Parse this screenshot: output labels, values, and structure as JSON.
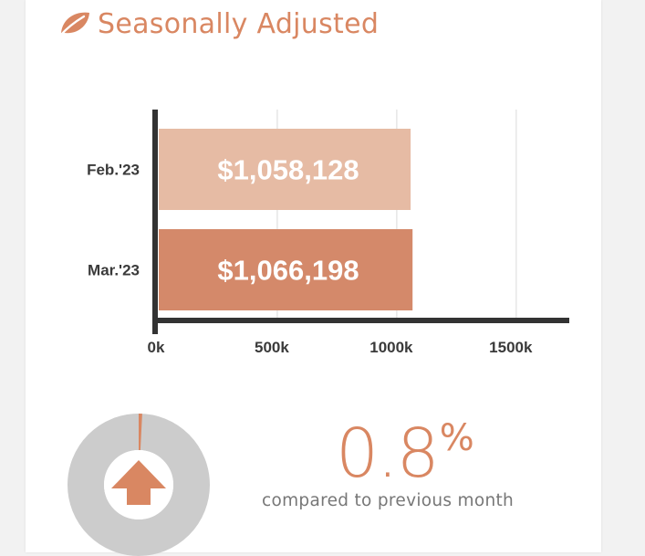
{
  "header": {
    "title": "Seasonally Adjusted",
    "icon": "leaf-icon"
  },
  "colors": {
    "accent": "#d98762",
    "bar_light": "#e6bba4",
    "bar_dark": "#d4896a",
    "axis": "#333333",
    "grid": "#e6e6e6",
    "donut_track": "#cccccc"
  },
  "chart_data": {
    "type": "bar",
    "orientation": "horizontal",
    "categories": [
      "Feb.'23",
      "Mar.'23"
    ],
    "values": [
      1058128,
      1066198
    ],
    "value_labels": [
      "$1,058,128",
      "$1,066,198"
    ],
    "xlim": [
      0,
      1600000
    ],
    "xticks": [
      0,
      500000,
      1000000,
      1500000
    ],
    "xtick_labels": [
      "0k",
      "500k",
      "1000k",
      "1500k"
    ],
    "grid": true,
    "legend": "none"
  },
  "summary": {
    "change_value": "0.8",
    "change_unit": "%",
    "change_fraction": 0.008,
    "direction": "up",
    "direction_icon": "arrow-up-icon",
    "caption": "compared to previous month"
  }
}
